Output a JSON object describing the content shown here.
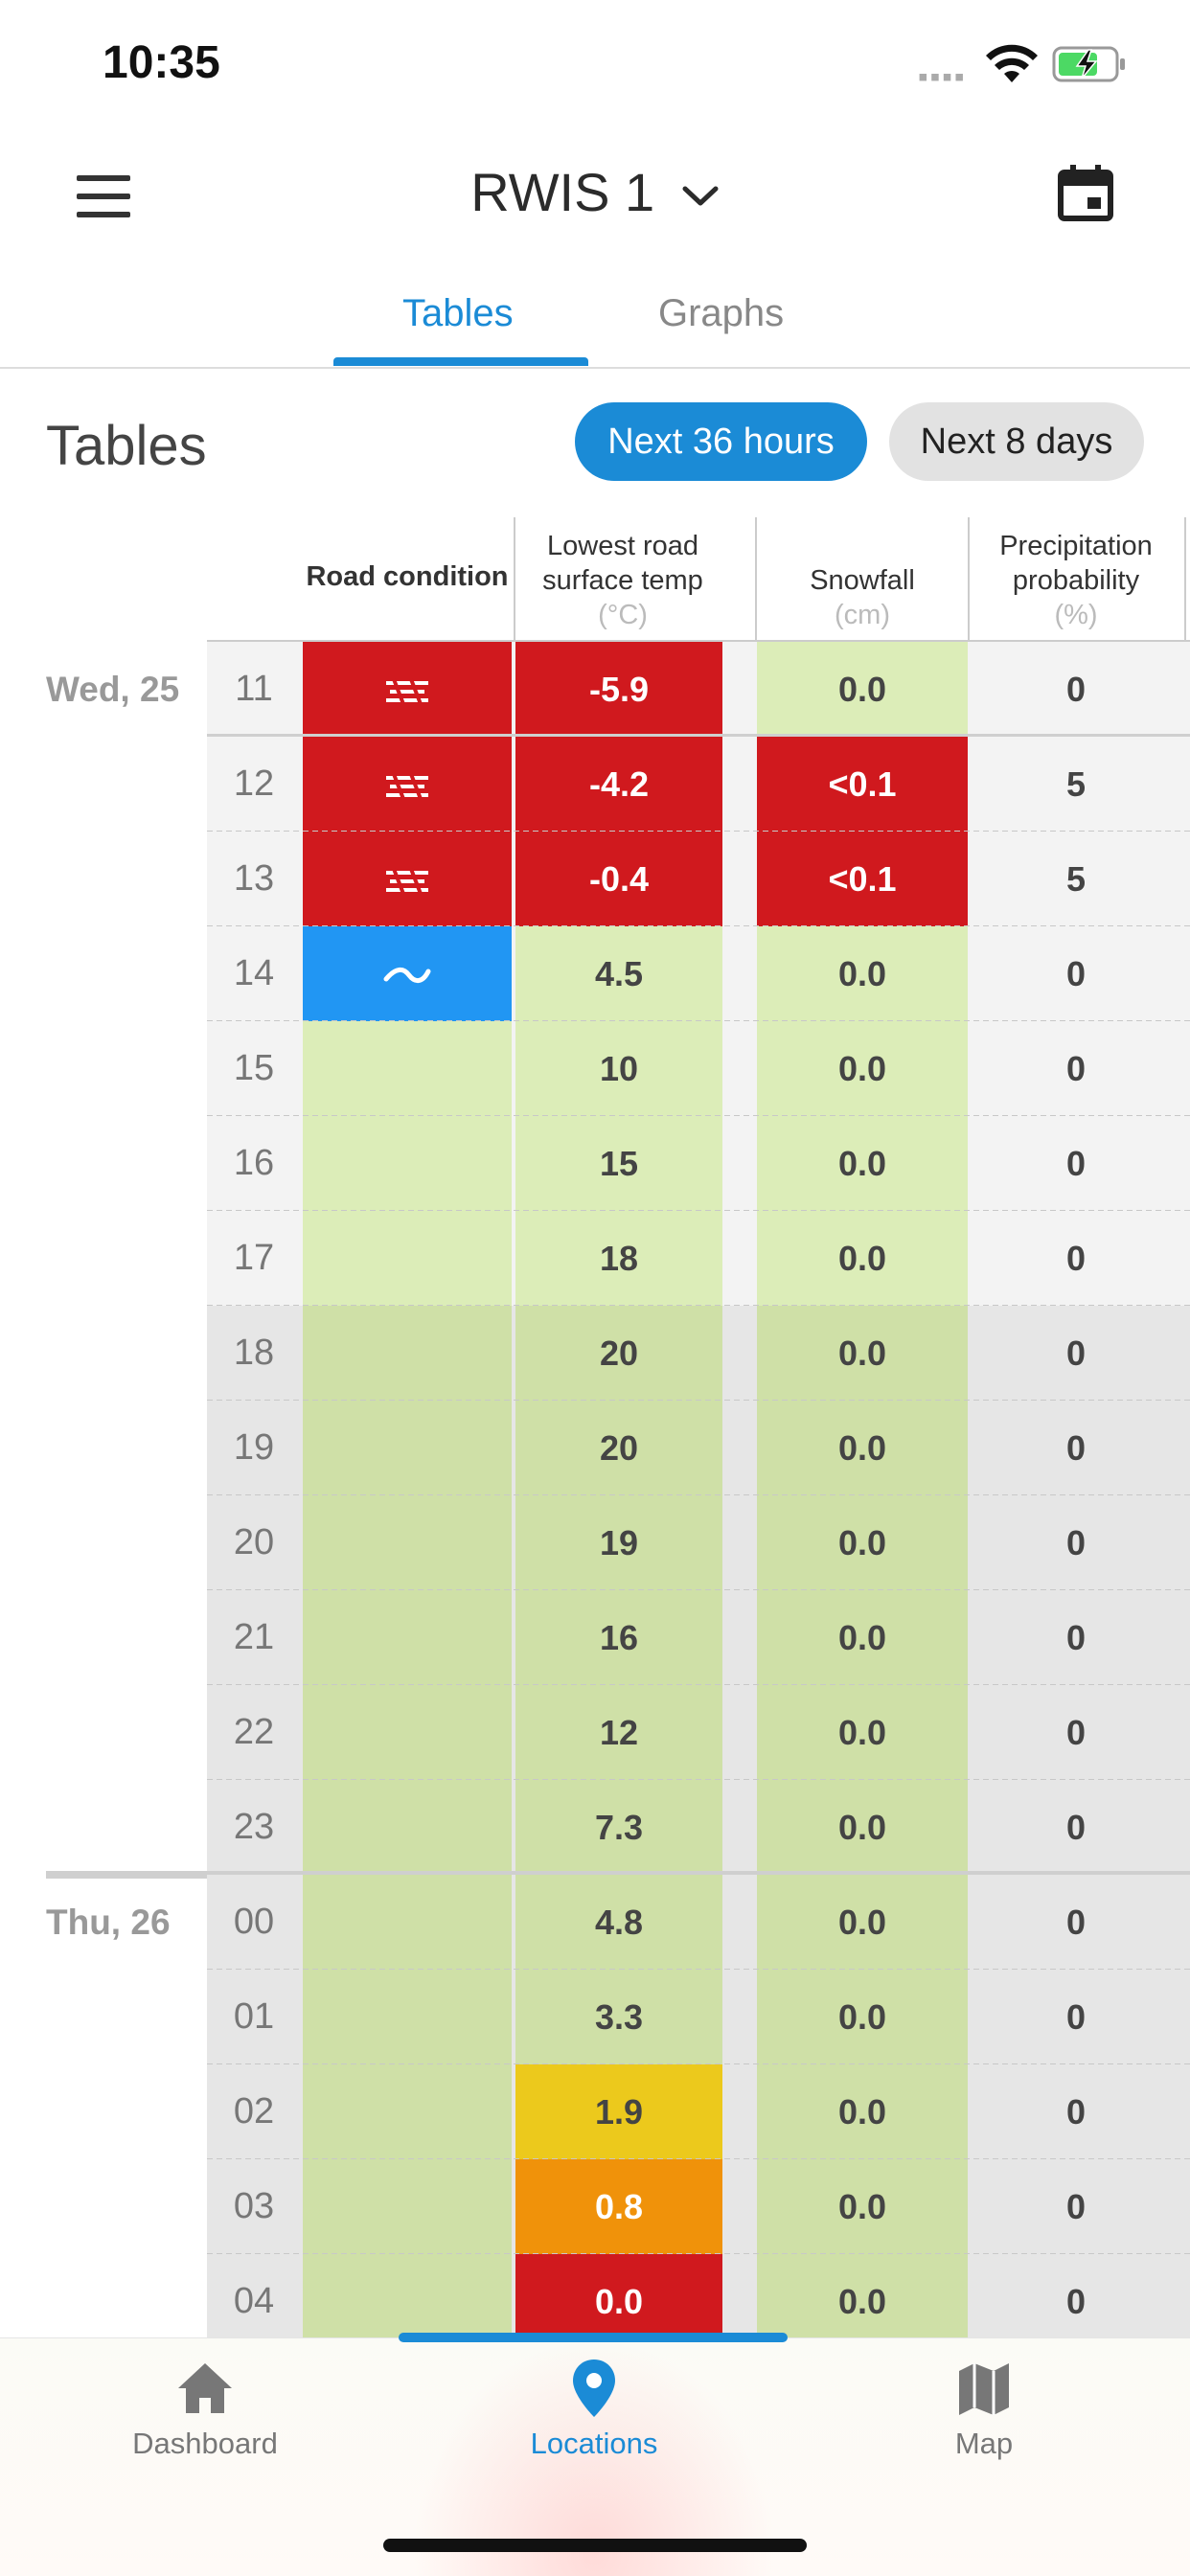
{
  "status": {
    "time": "10:35"
  },
  "header": {
    "title": "RWIS 1"
  },
  "tabs": [
    {
      "label": "Tables",
      "active": true
    },
    {
      "label": "Graphs",
      "active": false
    }
  ],
  "section": {
    "title": "Tables",
    "range_options": [
      {
        "label": "Next 36 hours",
        "selected": true
      },
      {
        "label": "Next 8 days",
        "selected": false
      }
    ]
  },
  "columns": {
    "road": {
      "label": "Road condition"
    },
    "temp": {
      "label1": "Lowest road",
      "label2": "surface temp",
      "unit": "(°C)"
    },
    "snow": {
      "label": "Snowfall",
      "unit": "(cm)"
    },
    "prec": {
      "label1": "Precipitation",
      "label2": "probability",
      "unit": "(%)"
    }
  },
  "colors": {
    "red": "#d0191e",
    "blue": "#2196f3",
    "green_light": "#dcedb8",
    "green_dark": "#cfe0a7",
    "yellow": "#ecc91c",
    "orange": "#f0920a",
    "gray_light": "#f3f3f3",
    "gray_dark": "#e6e6e6",
    "accent": "#1b8bd6"
  },
  "rows": [
    {
      "day": "Wed, 25",
      "hour": "11",
      "road_icon": "ice-icon",
      "road_color": "red",
      "temp": "-5.9",
      "temp_color": "red",
      "snow": "0.0",
      "snow_color": "green_light",
      "prec": "0",
      "shade": "light"
    },
    {
      "hour": "12",
      "road_icon": "ice-icon",
      "road_color": "red",
      "temp": "-4.2",
      "temp_color": "red",
      "snow": "<0.1",
      "snow_color": "red",
      "prec": "5",
      "shade": "light"
    },
    {
      "hour": "13",
      "road_icon": "ice-icon",
      "road_color": "red",
      "temp": "-0.4",
      "temp_color": "red",
      "snow": "<0.1",
      "snow_color": "red",
      "prec": "5",
      "shade": "light"
    },
    {
      "hour": "14",
      "road_icon": "wet-icon",
      "road_color": "blue",
      "temp": "4.5",
      "temp_color": "green_light",
      "snow": "0.0",
      "snow_color": "green_light",
      "prec": "0",
      "shade": "light"
    },
    {
      "hour": "15",
      "road_color": "green_light",
      "temp": "10",
      "temp_color": "green_light",
      "snow": "0.0",
      "snow_color": "green_light",
      "prec": "0",
      "shade": "light"
    },
    {
      "hour": "16",
      "road_color": "green_light",
      "temp": "15",
      "temp_color": "green_light",
      "snow": "0.0",
      "snow_color": "green_light",
      "prec": "0",
      "shade": "light"
    },
    {
      "hour": "17",
      "road_color": "green_light",
      "temp": "18",
      "temp_color": "green_light",
      "snow": "0.0",
      "snow_color": "green_light",
      "prec": "0",
      "shade": "light"
    },
    {
      "hour": "18",
      "road_color": "green_dark",
      "temp": "20",
      "temp_color": "green_dark",
      "snow": "0.0",
      "snow_color": "green_dark",
      "prec": "0",
      "shade": "dark"
    },
    {
      "hour": "19",
      "road_color": "green_dark",
      "temp": "20",
      "temp_color": "green_dark",
      "snow": "0.0",
      "snow_color": "green_dark",
      "prec": "0",
      "shade": "dark"
    },
    {
      "hour": "20",
      "road_color": "green_dark",
      "temp": "19",
      "temp_color": "green_dark",
      "snow": "0.0",
      "snow_color": "green_dark",
      "prec": "0",
      "shade": "dark"
    },
    {
      "hour": "21",
      "road_color": "green_dark",
      "temp": "16",
      "temp_color": "green_dark",
      "snow": "0.0",
      "snow_color": "green_dark",
      "prec": "0",
      "shade": "dark"
    },
    {
      "hour": "22",
      "road_color": "green_dark",
      "temp": "12",
      "temp_color": "green_dark",
      "snow": "0.0",
      "snow_color": "green_dark",
      "prec": "0",
      "shade": "dark"
    },
    {
      "hour": "23",
      "road_color": "green_dark",
      "temp": "7.3",
      "temp_color": "green_dark",
      "snow": "0.0",
      "snow_color": "green_dark",
      "prec": "0",
      "shade": "dark"
    },
    {
      "day": "Thu, 26",
      "hour": "00",
      "road_color": "green_dark",
      "temp": "4.8",
      "temp_color": "green_dark",
      "snow": "0.0",
      "snow_color": "green_dark",
      "prec": "0",
      "shade": "dark"
    },
    {
      "hour": "01",
      "road_color": "green_dark",
      "temp": "3.3",
      "temp_color": "green_dark",
      "snow": "0.0",
      "snow_color": "green_dark",
      "prec": "0",
      "shade": "dark"
    },
    {
      "hour": "02",
      "road_color": "green_dark",
      "temp": "1.9",
      "temp_color": "yellow",
      "snow": "0.0",
      "snow_color": "green_dark",
      "prec": "0",
      "shade": "dark"
    },
    {
      "hour": "03",
      "road_color": "green_dark",
      "temp": "0.8",
      "temp_color": "orange",
      "snow": "0.0",
      "snow_color": "green_dark",
      "prec": "0",
      "shade": "dark"
    },
    {
      "hour": "04",
      "road_color": "green_dark",
      "temp": "0.0",
      "temp_color": "red",
      "snow": "0.0",
      "snow_color": "green_dark",
      "prec": "0",
      "shade": "dark"
    }
  ],
  "bottom_nav": [
    {
      "label": "Dashboard",
      "icon": "home-icon",
      "active": false
    },
    {
      "label": "Locations",
      "icon": "location-pin-icon",
      "active": true
    },
    {
      "label": "Map",
      "icon": "map-icon",
      "active": false
    }
  ]
}
